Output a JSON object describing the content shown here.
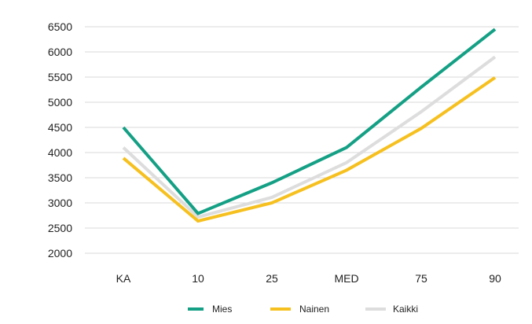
{
  "chart_data": {
    "type": "line",
    "categories": [
      "KA",
      "10",
      "25",
      "MED",
      "75",
      "90"
    ],
    "series": [
      {
        "name": "Mies",
        "color": "#14a085",
        "values": [
          4500,
          2790,
          3400,
          4100,
          5300,
          6450
        ]
      },
      {
        "name": "Nainen",
        "color": "#f6c01f",
        "values": [
          3890,
          2640,
          3000,
          3650,
          4480,
          5490
        ]
      },
      {
        "name": "Kaikki",
        "color": "#dddddd",
        "values": [
          4100,
          2720,
          3110,
          3800,
          4810,
          5900
        ]
      }
    ],
    "y_ticks": [
      "6500",
      "6000",
      "5500",
      "5000",
      "4500",
      "4000",
      "3500",
      "3000",
      "2500",
      "2000"
    ],
    "ylim": [
      2000,
      6500
    ],
    "grid": true,
    "legend_position": "bottom-center"
  }
}
